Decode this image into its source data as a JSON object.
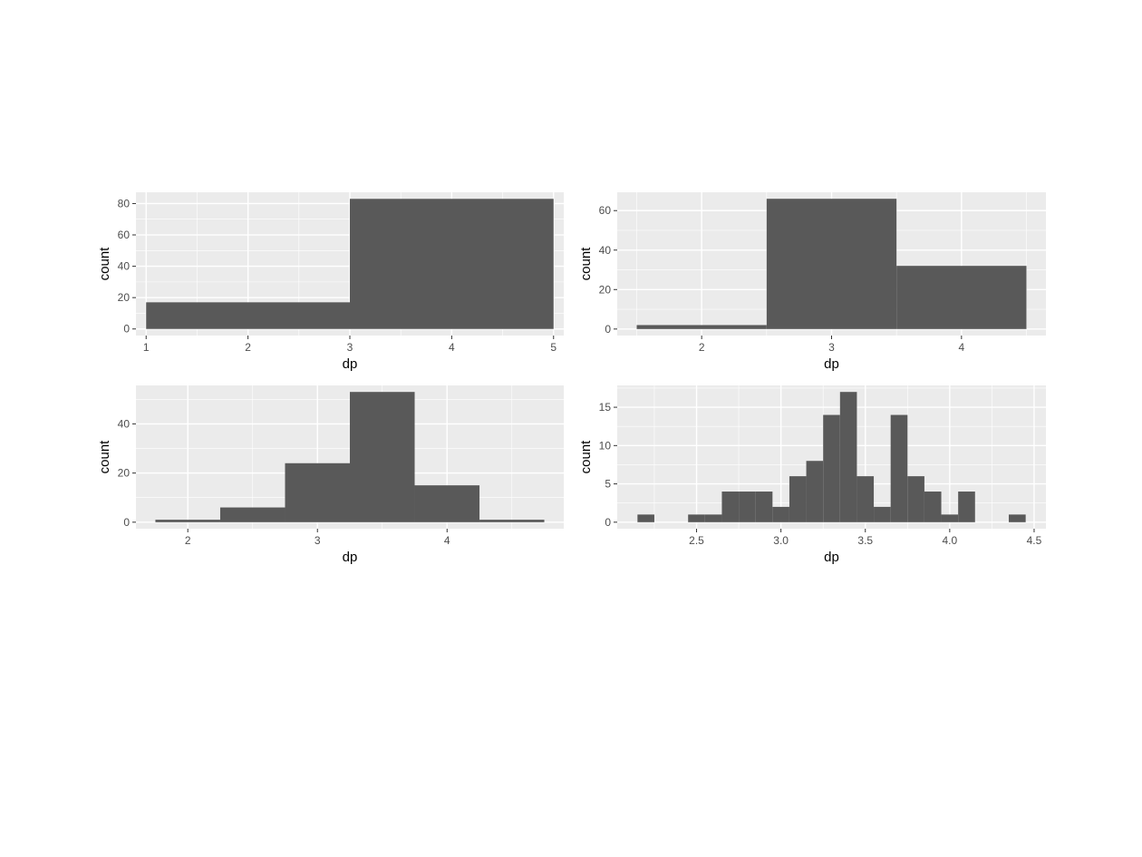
{
  "chart_data": [
    {
      "type": "bar",
      "xlabel": "dp",
      "ylabel": "count",
      "xlim": [
        0.9,
        5.1
      ],
      "ylim": [
        -4.2,
        87.2
      ],
      "x_ticks": [
        1,
        2,
        3,
        4,
        5
      ],
      "x_tick_labels": [
        "1",
        "2",
        "3",
        "4",
        "5"
      ],
      "y_ticks": [
        0,
        20,
        40,
        60,
        80
      ],
      "y_tick_labels": [
        "0",
        "20",
        "40",
        "60",
        "80"
      ],
      "bins": [
        {
          "xmin": 1,
          "xmax": 3,
          "count": 17
        },
        {
          "xmin": 3,
          "xmax": 5,
          "count": 83
        }
      ],
      "grid": true
    },
    {
      "type": "bar",
      "xlabel": "dp",
      "ylabel": "count",
      "xlim": [
        1.35,
        4.65
      ],
      "ylim": [
        -3.3,
        69.3
      ],
      "x_ticks": [
        2,
        3,
        4
      ],
      "x_tick_labels": [
        "2",
        "3",
        "4"
      ],
      "y_ticks": [
        0,
        20,
        40,
        60
      ],
      "y_tick_labels": [
        "0",
        "20",
        "40",
        "60"
      ],
      "bins": [
        {
          "xmin": 1.5,
          "xmax": 2.5,
          "count": 2
        },
        {
          "xmin": 2.5,
          "xmax": 3.5,
          "count": 66
        },
        {
          "xmin": 3.5,
          "xmax": 4.5,
          "count": 32
        }
      ],
      "grid": true
    },
    {
      "type": "bar",
      "xlabel": "dp",
      "ylabel": "count",
      "xlim": [
        1.6,
        4.9
      ],
      "ylim": [
        -2.65,
        55.65
      ],
      "x_ticks": [
        2,
        3,
        4
      ],
      "x_tick_labels": [
        "2",
        "3",
        "4"
      ],
      "y_ticks": [
        0,
        20,
        40
      ],
      "y_tick_labels": [
        "0",
        "20",
        "40"
      ],
      "bins": [
        {
          "xmin": 1.75,
          "xmax": 2.25,
          "count": 1
        },
        {
          "xmin": 2.25,
          "xmax": 2.75,
          "count": 6
        },
        {
          "xmin": 2.75,
          "xmax": 3.25,
          "count": 24
        },
        {
          "xmin": 3.25,
          "xmax": 3.75,
          "count": 53
        },
        {
          "xmin": 3.75,
          "xmax": 4.25,
          "count": 15
        },
        {
          "xmin": 4.25,
          "xmax": 4.75,
          "count": 1
        }
      ],
      "grid": true
    },
    {
      "type": "bar",
      "xlabel": "dp",
      "ylabel": "count",
      "xlim": [
        2.03,
        4.57
      ],
      "ylim": [
        -0.85,
        17.85
      ],
      "x_ticks": [
        2.5,
        3.0,
        3.5,
        4.0,
        4.5
      ],
      "x_tick_labels": [
        "2.5",
        "3.0",
        "3.5",
        "4.0",
        "4.5"
      ],
      "y_ticks": [
        0,
        5,
        10,
        15
      ],
      "y_tick_labels": [
        "0",
        "5",
        "10",
        "15"
      ],
      "bin_start": 2.15,
      "bin_width": 0.1,
      "counts": [
        1,
        0,
        0,
        1,
        1,
        4,
        4,
        4,
        2,
        6,
        8,
        14,
        17,
        6,
        2,
        14,
        6,
        4,
        1,
        4,
        0,
        0,
        1
      ],
      "grid": true
    }
  ]
}
